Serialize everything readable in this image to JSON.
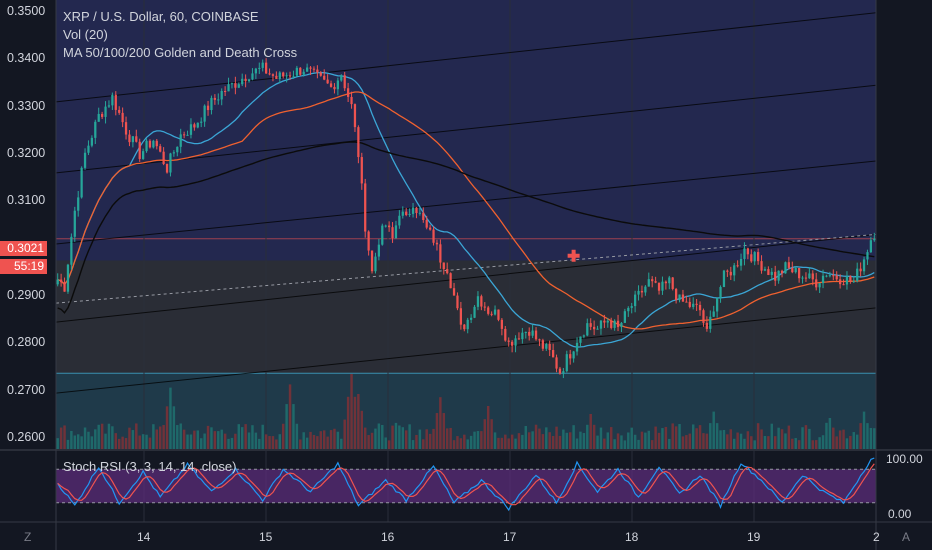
{
  "legend": {
    "symbol": "XRP / U.S. Dollar, 60, COINBASE",
    "volume": "Vol (20)",
    "ma": "MA 50/100/200 Golden and Death Cross",
    "oscillator": "Stoch RSI (3, 3, 14, 14, close)"
  },
  "price_scale": {
    "ticks": [
      "0.3500",
      "0.3400",
      "0.3300",
      "0.3200",
      "0.3100",
      "0.2900",
      "0.2800",
      "0.2700",
      "0.2600"
    ],
    "last_price": "0.3021",
    "countdown": "55:19"
  },
  "osc_scale": {
    "ticks": [
      "100.00",
      "0.00"
    ]
  },
  "time_axis": {
    "labels": [
      "14",
      "15",
      "16",
      "17",
      "18",
      "19",
      "2"
    ]
  },
  "corner": {
    "left": "Z",
    "right": "A"
  },
  "colors": {
    "background": "#131722",
    "up": "#26a69a",
    "down": "#ef5350",
    "ma_fast": "#3ba6d6",
    "ma_slow": "#f0612f",
    "stoch_k": "#2196f3",
    "stoch_d": "#ef5350"
  },
  "chart_data": {
    "type": "candlestick",
    "title": "XRP / U.S. Dollar, 60, COINBASE",
    "ylim": [
      0.2575,
      0.3525
    ],
    "x_labels": [
      "14",
      "15",
      "16",
      "17",
      "18",
      "19",
      "2"
    ],
    "close_anchors": [
      [
        0,
        0.2935
      ],
      [
        2,
        0.292
      ],
      [
        5,
        0.308
      ],
      [
        8,
        0.32
      ],
      [
        12,
        0.328
      ],
      [
        16,
        0.332
      ],
      [
        20,
        0.325
      ],
      [
        24,
        0.32
      ],
      [
        28,
        0.323
      ],
      [
        32,
        0.317
      ],
      [
        36,
        0.324
      ],
      [
        40,
        0.326
      ],
      [
        44,
        0.33
      ],
      [
        48,
        0.333
      ],
      [
        52,
        0.335
      ],
      [
        56,
        0.337
      ],
      [
        60,
        0.338
      ],
      [
        64,
        0.336
      ],
      [
        68,
        0.337
      ],
      [
        72,
        0.338
      ],
      [
        76,
        0.336
      ],
      [
        80,
        0.334
      ],
      [
        83,
        0.337
      ],
      [
        86,
        0.33
      ],
      [
        88,
        0.32
      ],
      [
        90,
        0.305
      ],
      [
        92,
        0.295
      ],
      [
        94,
        0.302
      ],
      [
        96,
        0.305
      ],
      [
        98,
        0.302
      ],
      [
        100,
        0.308
      ],
      [
        102,
        0.306
      ],
      [
        104,
        0.31
      ],
      [
        106,
        0.307
      ],
      [
        108,
        0.304
      ],
      [
        110,
        0.302
      ],
      [
        112,
        0.298
      ],
      [
        114,
        0.296
      ],
      [
        116,
        0.29
      ],
      [
        118,
        0.283
      ],
      [
        120,
        0.285
      ],
      [
        123,
        0.29
      ],
      [
        126,
        0.287
      ],
      [
        129,
        0.286
      ],
      [
        132,
        0.28
      ],
      [
        135,
        0.282
      ],
      [
        138,
        0.283
      ],
      [
        141,
        0.28
      ],
      [
        144,
        0.278
      ],
      [
        147,
        0.274
      ],
      [
        150,
        0.278
      ],
      [
        152,
        0.281
      ],
      [
        155,
        0.284
      ],
      [
        158,
        0.283
      ],
      [
        161,
        0.285
      ],
      [
        164,
        0.283
      ],
      [
        167,
        0.287
      ],
      [
        170,
        0.29
      ],
      [
        173,
        0.293
      ],
      [
        176,
        0.291
      ],
      [
        179,
        0.293
      ],
      [
        182,
        0.289
      ],
      [
        185,
        0.288
      ],
      [
        188,
        0.287
      ],
      [
        190,
        0.282
      ],
      [
        192,
        0.288
      ],
      [
        195,
        0.294
      ],
      [
        198,
        0.296
      ],
      [
        201,
        0.3
      ],
      [
        204,
        0.298
      ],
      [
        207,
        0.296
      ],
      [
        210,
        0.294
      ],
      [
        213,
        0.296
      ],
      [
        216,
        0.295
      ],
      [
        219,
        0.294
      ],
      [
        222,
        0.293
      ],
      [
        225,
        0.295
      ],
      [
        228,
        0.294
      ],
      [
        231,
        0.2935
      ],
      [
        233,
        0.293
      ],
      [
        236,
        0.298
      ],
      [
        238,
        0.3021
      ]
    ],
    "volume_peaks": [
      [
        33,
        0.78
      ],
      [
        68,
        0.82
      ],
      [
        86,
        0.95
      ],
      [
        88,
        0.7
      ],
      [
        112,
        0.66
      ],
      [
        126,
        0.55
      ],
      [
        156,
        0.45
      ],
      [
        192,
        0.48
      ],
      [
        226,
        0.4
      ],
      [
        236,
        0.48
      ]
    ],
    "stoch_k_anchors": [
      [
        0,
        55
      ],
      [
        5,
        15
      ],
      [
        12,
        85
      ],
      [
        18,
        20
      ],
      [
        25,
        75
      ],
      [
        30,
        30
      ],
      [
        38,
        88
      ],
      [
        45,
        40
      ],
      [
        52,
        80
      ],
      [
        60,
        25
      ],
      [
        66,
        80
      ],
      [
        74,
        40
      ],
      [
        82,
        90
      ],
      [
        88,
        15
      ],
      [
        96,
        60
      ],
      [
        102,
        25
      ],
      [
        110,
        85
      ],
      [
        116,
        20
      ],
      [
        124,
        60
      ],
      [
        132,
        10
      ],
      [
        140,
        70
      ],
      [
        146,
        20
      ],
      [
        152,
        90
      ],
      [
        158,
        40
      ],
      [
        164,
        80
      ],
      [
        170,
        30
      ],
      [
        176,
        85
      ],
      [
        182,
        35
      ],
      [
        188,
        70
      ],
      [
        194,
        15
      ],
      [
        200,
        92
      ],
      [
        206,
        60
      ],
      [
        212,
        20
      ],
      [
        218,
        70
      ],
      [
        224,
        40
      ],
      [
        230,
        20
      ],
      [
        238,
        98
      ]
    ],
    "stoch_bands": [
      20,
      80
    ]
  }
}
